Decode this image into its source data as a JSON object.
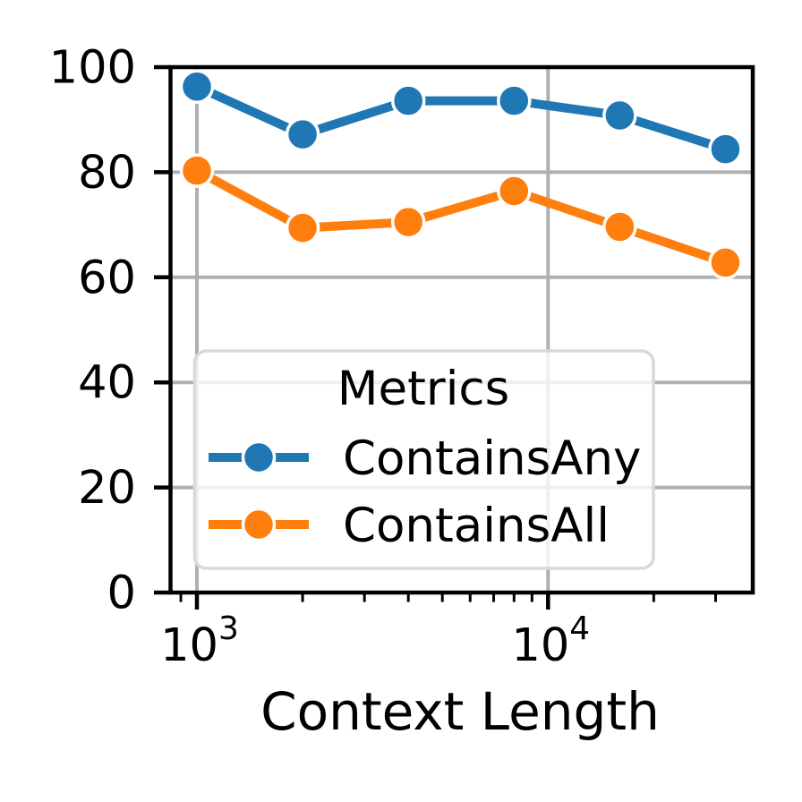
{
  "figure": {
    "background": "#ffffff"
  },
  "chart_data": {
    "type": "line",
    "title": "",
    "xlabel": "Context Length",
    "ylabel": "",
    "x_scale": "log",
    "x": [
      1000,
      2000,
      4000,
      8000,
      16000,
      32000
    ],
    "series": [
      {
        "name": "ContainsAny",
        "color": "#1f77b4",
        "values": [
          96.3,
          87.2,
          93.6,
          93.6,
          90.8,
          84.4
        ]
      },
      {
        "name": "ContainsAll",
        "color": "#ff7f0e",
        "values": [
          80.3,
          69.4,
          70.5,
          76.4,
          69.6,
          62.8
        ]
      }
    ],
    "ylim": [
      0,
      100
    ],
    "yticks": [
      0,
      20,
      40,
      60,
      80,
      100
    ],
    "xticks": [
      1000,
      10000
    ],
    "x_tick_labels": [
      {
        "base": "10",
        "exp": "3"
      },
      {
        "base": "10",
        "exp": "4"
      }
    ],
    "grid": true,
    "grid_color": "#b0b0b0",
    "legend": {
      "title": "Metrics",
      "position": "lower left"
    }
  }
}
